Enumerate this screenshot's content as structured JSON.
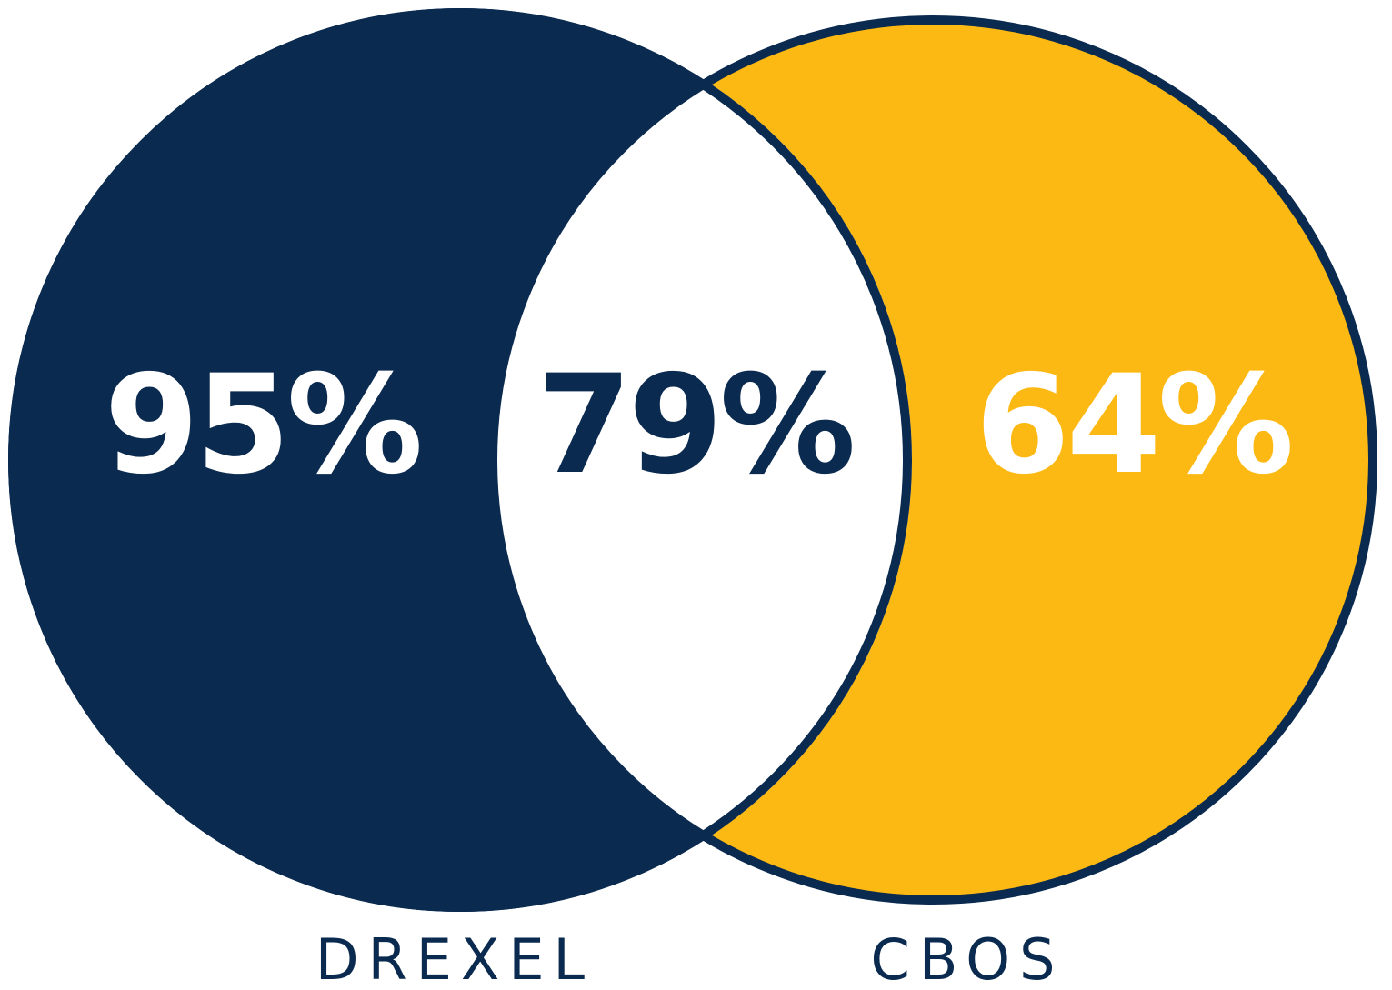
{
  "left": {
    "label": "DREXEL",
    "value_text": "95%"
  },
  "overlap": {
    "value_text": "79%"
  },
  "right": {
    "label": "CBOS",
    "value_text": "64%"
  }
}
